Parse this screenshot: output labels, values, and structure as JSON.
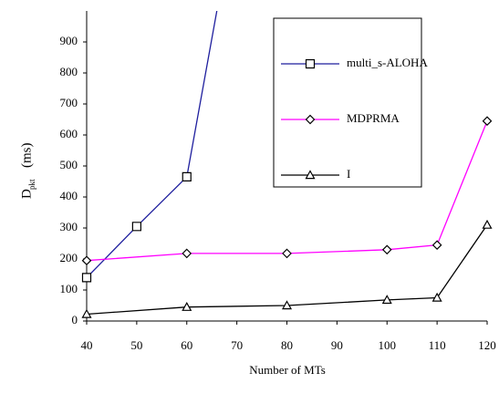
{
  "chart_data": {
    "type": "line",
    "x_label": "Number of MTs",
    "y_label": {
      "main": "D",
      "sub": "pkt",
      "unit": "(ms)"
    },
    "xlim": [
      40,
      120
    ],
    "xticks": [
      40,
      50,
      60,
      70,
      80,
      90,
      100,
      110,
      120
    ],
    "ylim": [
      0,
      1000
    ],
    "yticks": [
      0,
      100,
      200,
      300,
      400,
      500,
      600,
      700,
      800,
      900
    ],
    "legend": "upper-right",
    "series": [
      {
        "name": "multi_s-ALOHA",
        "color": "#1f1f9e",
        "marker": "square",
        "x": [
          40,
          50,
          60,
          66
        ],
        "values": [
          140,
          305,
          465,
          1000
        ]
      },
      {
        "name": "MDPRMA",
        "color": "#ff00ff",
        "marker": "diamond",
        "x": [
          40,
          60,
          80,
          100,
          110,
          120
        ],
        "values": [
          195,
          218,
          218,
          230,
          245,
          645
        ]
      },
      {
        "name": "I",
        "color": "#000000",
        "marker": "triangle",
        "x": [
          40,
          60,
          80,
          100,
          110,
          120
        ],
        "values": [
          22,
          45,
          50,
          68,
          75,
          310
        ]
      }
    ]
  }
}
